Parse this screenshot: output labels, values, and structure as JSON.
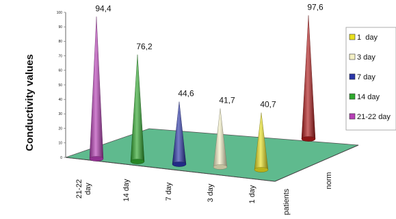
{
  "chart_data": {
    "type": "bar",
    "style": "3d-cone",
    "ylabel": "Conductivity values",
    "ylim": [
      0,
      100
    ],
    "yticks": [
      0,
      10,
      20,
      30,
      40,
      50,
      60,
      70,
      80,
      90,
      100
    ],
    "categories": [
      "21-22 day",
      "14 day",
      "7 day",
      "3 day",
      "1 day",
      "norm"
    ],
    "category_labels": [
      [
        "21-22",
        "day"
      ],
      [
        "14 day"
      ],
      [
        "7 day"
      ],
      [
        "3 day"
      ],
      [
        "1 day"
      ],
      [
        "norm"
      ]
    ],
    "depth_label": "patients",
    "series": [
      {
        "name": "1  day",
        "color": "#e8e020",
        "values": [
          null,
          null,
          null,
          null,
          40.7,
          null
        ],
        "labels": [
          null,
          null,
          null,
          null,
          "40,7",
          null
        ]
      },
      {
        "name": "3 day",
        "color": "#f4f0c6",
        "values": [
          null,
          null,
          null,
          41.7,
          null,
          null
        ],
        "labels": [
          null,
          null,
          null,
          "41,7",
          null,
          null
        ]
      },
      {
        "name": "7 day",
        "color": "#2a36a8",
        "values": [
          null,
          null,
          44.6,
          null,
          null,
          null
        ],
        "labels": [
          null,
          null,
          "44,6",
          null,
          null,
          null
        ]
      },
      {
        "name": "14 day",
        "color": "#2fa82e",
        "values": [
          null,
          76.2,
          null,
          null,
          null,
          null
        ],
        "labels": [
          null,
          "76,2",
          null,
          null,
          null,
          null
        ]
      },
      {
        "name": "21-22 day",
        "color": "#b63fb5",
        "values": [
          94.4,
          null,
          null,
          null,
          null,
          null
        ],
        "labels": [
          "94,4",
          null,
          null,
          null,
          null,
          null
        ]
      },
      {
        "name": "norm",
        "color": "#b01c1c",
        "values": [
          null,
          null,
          null,
          null,
          null,
          97.6
        ],
        "labels": [
          null,
          null,
          null,
          null,
          null,
          "97,6"
        ]
      }
    ],
    "legend_position": "right",
    "legend_entries": [
      "1  day",
      "3 day",
      "7 day",
      "14 day",
      "21-22 day"
    ],
    "floor_color": "#5fba8e"
  }
}
